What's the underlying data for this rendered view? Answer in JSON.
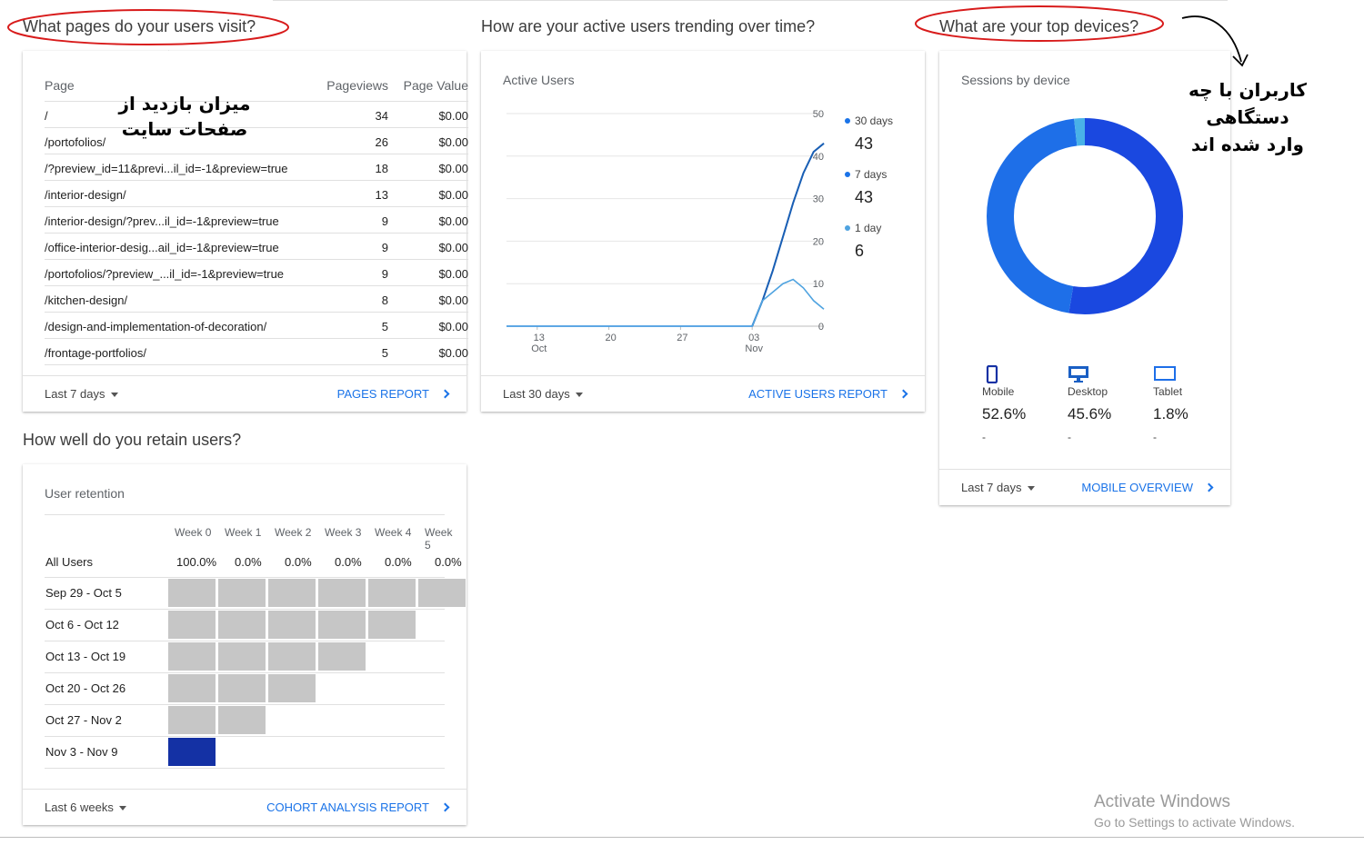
{
  "sections": {
    "pages_title": "What pages do your users visit?",
    "trend_title": "How are your active users trending over time?",
    "devices_title": "What are your top devices?",
    "retention_title": "How well do you retain users?"
  },
  "pages": {
    "headers": {
      "page": "Page",
      "views": "Pageviews",
      "value": "Page Value"
    },
    "rows": [
      {
        "page": "/",
        "views": "34",
        "value": "$0.00"
      },
      {
        "page": "/portofolios/",
        "views": "26",
        "value": "$0.00"
      },
      {
        "page": "/?preview_id=11&previ...il_id=-1&preview=true",
        "views": "18",
        "value": "$0.00"
      },
      {
        "page": "/interior-design/",
        "views": "13",
        "value": "$0.00"
      },
      {
        "page": "/interior-design/?prev...il_id=-1&preview=true",
        "views": "9",
        "value": "$0.00"
      },
      {
        "page": "/office-interior-desig...ail_id=-1&preview=true",
        "views": "9",
        "value": "$0.00"
      },
      {
        "page": "/portofolios/?preview_...il_id=-1&preview=true",
        "views": "9",
        "value": "$0.00"
      },
      {
        "page": "/kitchen-design/",
        "views": "8",
        "value": "$0.00"
      },
      {
        "page": "/design-and-implementation-of-decoration/",
        "views": "5",
        "value": "$0.00"
      },
      {
        "page": "/frontage-portfolios/",
        "views": "5",
        "value": "$0.00"
      }
    ],
    "range": "Last 7 days",
    "report_link": "PAGES REPORT"
  },
  "active_users": {
    "title": "Active Users",
    "range": "Last 30 days",
    "report_link": "ACTIVE USERS REPORT",
    "legend": [
      {
        "label": "30 days",
        "value": "43",
        "color": "#1a73e8"
      },
      {
        "label": "7 days",
        "value": "43",
        "color": "#1a73e8"
      },
      {
        "label": "1 day",
        "value": "6",
        "color": "#4fa3e0"
      }
    ]
  },
  "chart_data": {
    "type": "line",
    "title": "Active Users",
    "ylim": [
      0,
      50
    ],
    "y_ticks": [
      "50",
      "40",
      "30",
      "20",
      "10",
      "0"
    ],
    "x_ticks": [
      {
        "x": 13,
        "label": "13",
        "sub": "Oct"
      },
      {
        "x": 20,
        "label": "20",
        "sub": ""
      },
      {
        "x": 27,
        "label": "27",
        "sub": ""
      },
      {
        "x": 34,
        "label": "03",
        "sub": "Nov"
      }
    ],
    "x_range": [
      10,
      41
    ],
    "grid": true,
    "series": [
      {
        "name": "30 days",
        "color": "#1a73e8",
        "x": [
          10,
          34,
          35,
          36,
          37,
          38,
          39,
          40,
          41
        ],
        "y": [
          0,
          0,
          6,
          13,
          21,
          29,
          36,
          41,
          43
        ]
      },
      {
        "name": "7 days",
        "color": "#1a5fb4",
        "x": [
          34,
          35,
          36,
          37,
          38,
          39,
          40,
          41
        ],
        "y": [
          0,
          6,
          13,
          21,
          29,
          36,
          41,
          43
        ]
      },
      {
        "name": "1 day",
        "color": "#4fa3e0",
        "x": [
          10,
          34,
          35,
          36,
          37,
          38,
          39,
          40,
          41
        ],
        "y": [
          0,
          0,
          6,
          8,
          10,
          11,
          9,
          6,
          4
        ]
      }
    ]
  },
  "devices": {
    "title": "Sessions by device",
    "range": "Last 7 days",
    "report_link": "MOBILE OVERVIEW",
    "items": [
      {
        "name": "Mobile",
        "percent": "52.6%",
        "delta": "-",
        "share": 52.6,
        "color": "#1a48e0",
        "icon": "mobile-icon"
      },
      {
        "name": "Desktop",
        "percent": "45.6%",
        "delta": "-",
        "share": 45.6,
        "color": "#1e6fe8",
        "icon": "desktop-icon"
      },
      {
        "name": "Tablet",
        "percent": "1.8%",
        "delta": "-",
        "share": 1.8,
        "color": "#49b2e8",
        "icon": "tablet-icon"
      }
    ]
  },
  "retention": {
    "title": "User retention",
    "weeks": [
      "Week 0",
      "Week 1",
      "Week 2",
      "Week 3",
      "Week 4",
      "Week 5"
    ],
    "all_users": {
      "label": "All Users",
      "values": [
        "100.0%",
        "0.0%",
        "0.0%",
        "0.0%",
        "0.0%",
        "0.0%"
      ]
    },
    "cohorts": [
      {
        "label": "Sep 29 - Oct 5",
        "cells": 6
      },
      {
        "label": "Oct 6 - Oct 12",
        "cells": 5
      },
      {
        "label": "Oct 13 - Oct 19",
        "cells": 4
      },
      {
        "label": "Oct 20 - Oct 26",
        "cells": 3
      },
      {
        "label": "Oct 27 - Nov 2",
        "cells": 2
      },
      {
        "label": "Nov 3 - Nov 9",
        "cells": 1,
        "highlight": true
      }
    ],
    "range": "Last 6 weeks",
    "report_link": "COHORT ANALYSIS REPORT"
  },
  "annotations": {
    "pages_note_1": "میزان بازدید از",
    "pages_note_2": "صفحات سایت",
    "devices_note_1": "کاربران با چه دستگاهی",
    "devices_note_2": "وارد شده اند"
  },
  "watermark": {
    "title": "Activate Windows",
    "subtitle": "Go to Settings to activate Windows."
  }
}
